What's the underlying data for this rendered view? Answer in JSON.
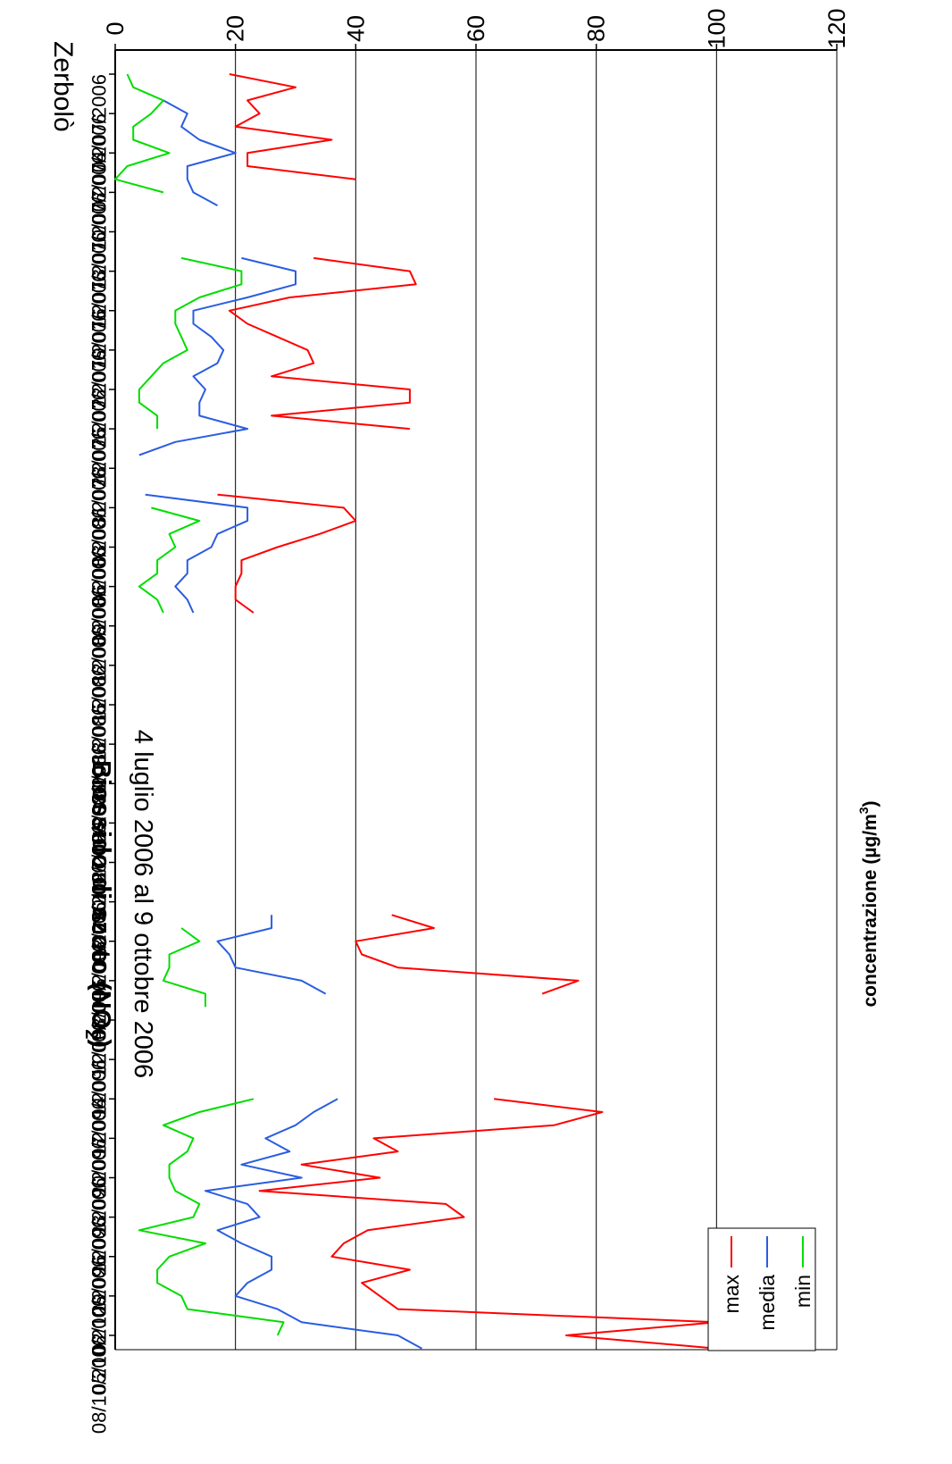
{
  "chart_data": {
    "type": "line",
    "title": "Biossido di azoto (NO",
    "title_sub": "2",
    "title_end": ")",
    "subtitle": "4 luglio 2006 al 9 ottobre 2006",
    "station": "Zerbolò",
    "ylabel": "concentrazione (µg/m",
    "ylabel_sup": "3",
    "ylabel_end": ")",
    "ylim": [
      0,
      120
    ],
    "yticks": [
      0,
      20,
      40,
      60,
      80,
      100,
      120
    ],
    "grid": true,
    "legend_position": "top-right",
    "orientation": "rotated 90° clockwise",
    "x_tick_labels": [
      "04/07/2006",
      "07/07/2006",
      "10/07/2006",
      "13/07/2006",
      "16/07/2006",
      "19/07/2006",
      "22/07/2006",
      "25/07/2006",
      "28/07/2006",
      "31/07/2006",
      "03/08/2006",
      "06/08/2006",
      "09/08/2006",
      "12/08/2006",
      "15/08/2006",
      "18/08/2006",
      "21/08/2006",
      "24/08/2006",
      "27/08/2006",
      "30/08/2006",
      "02/09/2006",
      "05/09/2006",
      "08/09/2006",
      "11/09/2006",
      "14/09/2006",
      "17/09/2006",
      "20/09/2006",
      "23/09/2006",
      "26/09/2006",
      "29/09/2006",
      "02/10/2006",
      "05/10/2006",
      "08/10/2006"
    ],
    "x_start_date": "04/07/2006",
    "series": [
      {
        "name": "max",
        "color": "#ff0000",
        "values": [
          19,
          30,
          22,
          24,
          20,
          36,
          22,
          22,
          40,
          null,
          null,
          null,
          null,
          null,
          33,
          49,
          50,
          29,
          19,
          22,
          27,
          32,
          33,
          26,
          49,
          49,
          26,
          49,
          null,
          null,
          null,
          null,
          17,
          38,
          40,
          34,
          27,
          21,
          21,
          20,
          20,
          23,
          null,
          null,
          null,
          null,
          null,
          null,
          null,
          null,
          null,
          null,
          null,
          null,
          null,
          null,
          null,
          null,
          null,
          null,
          null,
          null,
          null,
          null,
          46,
          53,
          40,
          41,
          47,
          77,
          71,
          null,
          null,
          null,
          null,
          null,
          null,
          null,
          63,
          81,
          73,
          43,
          47,
          31,
          44,
          24,
          55,
          58,
          42,
          38,
          36,
          49,
          41,
          44,
          47,
          100,
          75,
          100
        ]
      },
      {
        "name": "media",
        "color": "#2a5de0",
        "values": [
          6,
          null,
          8,
          12,
          11,
          14,
          20,
          12,
          12,
          13,
          17,
          null,
          null,
          null,
          21,
          30,
          30,
          22,
          13,
          13,
          16,
          18,
          17,
          13,
          15,
          14,
          14,
          22,
          10,
          4,
          null,
          null,
          5,
          22,
          22,
          17,
          16,
          12,
          12,
          10,
          12,
          13,
          null,
          null,
          null,
          null,
          null,
          null,
          null,
          null,
          null,
          null,
          null,
          null,
          null,
          null,
          null,
          null,
          null,
          null,
          null,
          null,
          null,
          null,
          26,
          26,
          17,
          19,
          20,
          31,
          35,
          null,
          null,
          null,
          null,
          null,
          null,
          null,
          37,
          33,
          30,
          25,
          29,
          21,
          31,
          15,
          22,
          24,
          17,
          21,
          26,
          26,
          22,
          20,
          27,
          31,
          47,
          51
        ]
      },
      {
        "name": "min",
        "color": "#00dd00",
        "values": [
          2,
          3,
          8,
          6,
          3,
          3,
          9,
          2,
          0,
          8,
          null,
          null,
          null,
          null,
          11,
          21,
          21,
          14,
          10,
          10,
          11,
          12,
          8,
          6,
          4,
          4,
          7,
          7,
          null,
          null,
          null,
          null,
          null,
          6,
          14,
          9,
          10,
          7,
          7,
          4,
          7,
          8,
          null,
          null,
          null,
          null,
          null,
          null,
          null,
          null,
          null,
          null,
          null,
          null,
          null,
          null,
          null,
          null,
          null,
          null,
          null,
          null,
          null,
          null,
          null,
          11,
          14,
          9,
          9,
          8,
          15,
          15,
          null,
          null,
          null,
          null,
          null,
          null,
          23,
          14,
          8,
          13,
          12,
          9,
          9,
          10,
          14,
          13,
          4,
          15,
          9,
          7,
          7,
          11,
          12,
          28,
          27
        ]
      }
    ]
  }
}
